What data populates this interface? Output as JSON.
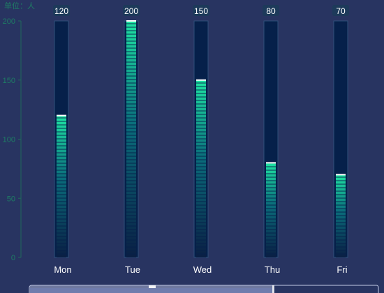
{
  "chart_data": {
    "type": "bar",
    "y_unit_label": "单位：人",
    "categories": [
      "Mon",
      "Tue",
      "Wed",
      "Thu",
      "Fri"
    ],
    "values": [
      120,
      200,
      150,
      80,
      70
    ],
    "ylim": [
      0,
      200
    ],
    "y_ticks": [
      0,
      50,
      100,
      150,
      200
    ],
    "data_labels": [
      "120",
      "200",
      "150",
      "80",
      "70"
    ],
    "grid": false,
    "has_datazoom_slider": true,
    "colors": {
      "background": "#283461",
      "track": "#06204a",
      "track_border": "#2f4f7a",
      "bar_top": "#1ee3a3",
      "bar_bottom": "#0a1f44",
      "cap": "#ffffff",
      "axis": "#1f6a5a",
      "tick_label": "#1e7d64",
      "category_label": "#ffffff",
      "value_label": "#ffffff",
      "value_label_bg": "#1d3a5a",
      "slider_fill": "#a9b3d6",
      "slider_border": "#c4cbe6"
    }
  }
}
